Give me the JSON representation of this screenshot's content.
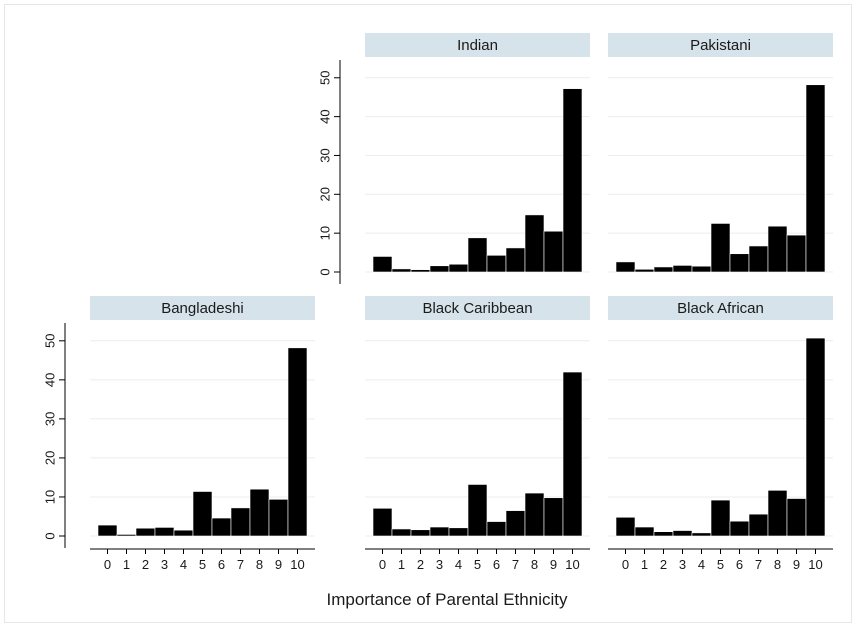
{
  "chart_data": {
    "type": "bar",
    "xlabel": "Importance of Parental Ethnicity",
    "ylabel": "",
    "categories": [
      "0",
      "1",
      "2",
      "3",
      "4",
      "5",
      "6",
      "7",
      "8",
      "9",
      "10"
    ],
    "y_ticks": [
      0,
      10,
      20,
      30,
      40,
      50
    ],
    "ylim": [
      0,
      52
    ],
    "grid": true,
    "bar_color": "#000000",
    "strip_color": "#d6e3ea",
    "grid_color": "#e8eef2",
    "panels": [
      {
        "name": "Indian",
        "values": [
          4.0,
          0.8,
          0.6,
          1.6,
          2.0,
          8.8,
          4.3,
          6.2,
          14.7,
          10.5,
          47.2
        ]
      },
      {
        "name": "Pakistani",
        "values": [
          2.6,
          0.7,
          1.3,
          1.7,
          1.5,
          12.5,
          4.7,
          6.7,
          11.8,
          9.5,
          48.2
        ]
      },
      {
        "name": "Bangladeshi",
        "values": [
          2.8,
          0.4,
          2.0,
          2.2,
          1.5,
          11.4,
          4.6,
          7.2,
          12.0,
          9.4,
          48.2
        ]
      },
      {
        "name": "Black Caribbean",
        "values": [
          7.1,
          1.8,
          1.6,
          2.3,
          2.1,
          13.2,
          3.7,
          6.5,
          11.0,
          9.8,
          42.0
        ]
      },
      {
        "name": "Black African",
        "values": [
          4.8,
          2.3,
          1.1,
          1.4,
          0.8,
          9.2,
          3.8,
          5.6,
          11.7,
          9.6,
          50.7
        ]
      }
    ]
  }
}
